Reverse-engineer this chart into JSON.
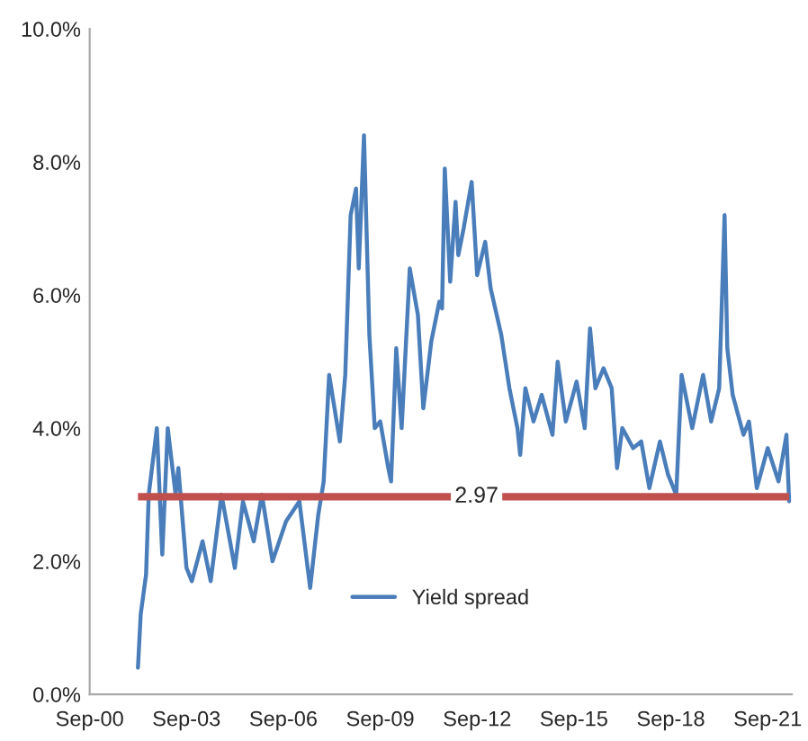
{
  "chart_data": {
    "type": "line",
    "x": [
      "2002-03",
      "2002-04",
      "2002-06",
      "2002-07",
      "2002-10",
      "2002-12",
      "2003-02",
      "2003-05",
      "2003-06",
      "2003-09",
      "2003-11",
      "2004-03",
      "2004-06",
      "2004-10",
      "2005-03",
      "2005-06",
      "2005-10",
      "2006-01",
      "2006-05",
      "2006-10",
      "2007-03",
      "2007-07",
      "2007-10",
      "2007-12",
      "2008-02",
      "2008-06",
      "2008-08",
      "2008-10",
      "2008-12",
      "2009-01",
      "2009-03",
      "2009-05",
      "2009-07",
      "2009-09",
      "2009-12",
      "2010-01",
      "2010-03",
      "2010-05",
      "2010-08",
      "2010-11",
      "2011-01",
      "2011-04",
      "2011-07",
      "2011-08",
      "2011-09",
      "2011-11",
      "2012-01",
      "2012-02",
      "2012-04",
      "2012-07",
      "2012-09",
      "2012-12",
      "2013-02",
      "2013-06",
      "2013-09",
      "2013-12",
      "2014-01",
      "2014-03",
      "2014-06",
      "2014-09",
      "2015-01",
      "2015-03",
      "2015-06",
      "2015-10",
      "2016-01",
      "2016-03",
      "2016-05",
      "2016-08",
      "2016-11",
      "2017-01",
      "2017-03",
      "2017-07",
      "2017-10",
      "2018-01",
      "2018-05",
      "2018-08",
      "2018-11",
      "2019-01",
      "2019-05",
      "2019-09",
      "2019-12",
      "2020-03",
      "2020-05",
      "2020-06",
      "2020-08",
      "2020-12",
      "2021-02",
      "2021-05",
      "2021-09",
      "2022-01",
      "2022-04",
      "2022-05"
    ],
    "series": [
      {
        "name": "Yield spread",
        "color": "#4a7ebb",
        "values": [
          0.4,
          1.2,
          1.8,
          3.0,
          4.0,
          2.1,
          4.0,
          3.0,
          3.4,
          1.9,
          1.7,
          2.3,
          1.7,
          3.0,
          1.9,
          2.9,
          2.3,
          3.0,
          2.0,
          2.6,
          2.9,
          1.6,
          2.7,
          3.2,
          4.8,
          3.8,
          4.8,
          7.2,
          7.6,
          6.4,
          8.4,
          5.4,
          4.0,
          4.1,
          3.4,
          3.2,
          5.2,
          4.0,
          6.4,
          5.7,
          4.3,
          5.3,
          5.9,
          5.8,
          7.9,
          6.2,
          7.4,
          6.6,
          7.0,
          7.7,
          6.3,
          6.8,
          6.1,
          5.4,
          4.6,
          4.0,
          3.6,
          4.6,
          4.1,
          4.5,
          3.9,
          5.0,
          4.1,
          4.7,
          4.0,
          5.5,
          4.6,
          4.9,
          4.6,
          3.4,
          4.0,
          3.7,
          3.8,
          3.1,
          3.8,
          3.3,
          3.0,
          4.8,
          4.0,
          4.8,
          4.1,
          4.6,
          7.2,
          5.2,
          4.5,
          3.9,
          4.1,
          3.1,
          3.7,
          3.2,
          3.9,
          2.9
        ]
      }
    ],
    "xlim": [
      "2000-09",
      "2022-06"
    ],
    "xticks": [
      {
        "value": "2000-09",
        "label": "Sep-00"
      },
      {
        "value": "2003-09",
        "label": "Sep-03"
      },
      {
        "value": "2006-09",
        "label": "Sep-06"
      },
      {
        "value": "2009-09",
        "label": "Sep-09"
      },
      {
        "value": "2012-09",
        "label": "Sep-12"
      },
      {
        "value": "2015-09",
        "label": "Sep-15"
      },
      {
        "value": "2018-09",
        "label": "Sep-18"
      },
      {
        "value": "2021-09",
        "label": "Sep-21"
      }
    ],
    "ylim": [
      0,
      10
    ],
    "yticks": [
      {
        "value": 0,
        "label": "0.0%"
      },
      {
        "value": 2,
        "label": "2.0%"
      },
      {
        "value": 4,
        "label": "4.0%"
      },
      {
        "value": 6,
        "label": "6.0%"
      },
      {
        "value": 8,
        "label": "8.0%"
      },
      {
        "value": 10,
        "label": "10.0%"
      }
    ],
    "ref_lines": [
      {
        "axis": "y",
        "value": 2.97,
        "label": "2.97",
        "color": "#c0504d"
      }
    ],
    "legend": "bottom",
    "grid": false,
    "line_style": "solid",
    "marker": "none"
  }
}
